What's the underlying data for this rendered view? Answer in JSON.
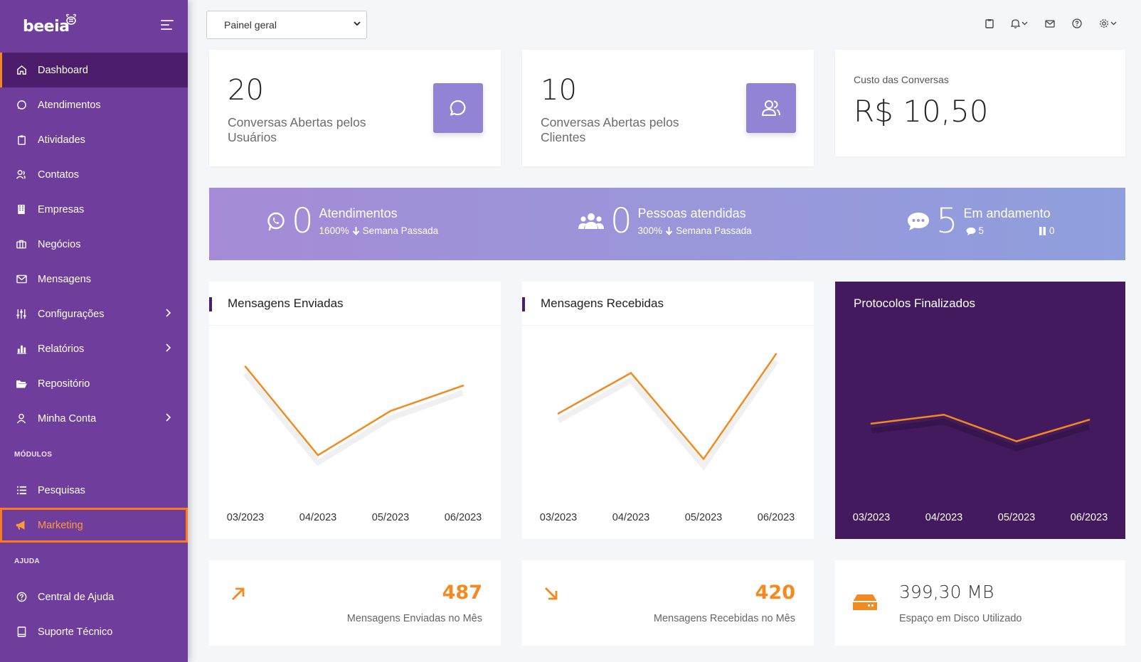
{
  "app": {
    "logo": "beeia"
  },
  "sidebar": {
    "items": [
      {
        "label": "Dashboard"
      },
      {
        "label": "Atendimentos"
      },
      {
        "label": "Atividades"
      },
      {
        "label": "Contatos"
      },
      {
        "label": "Empresas"
      },
      {
        "label": "Negócios"
      },
      {
        "label": "Mensagens"
      },
      {
        "label": "Configurações"
      },
      {
        "label": "Relatórios"
      },
      {
        "label": "Repositório"
      },
      {
        "label": "Minha Conta"
      }
    ],
    "section_modulos": "MÓDULOS",
    "modulos": [
      {
        "label": "Pesquisas"
      },
      {
        "label": "Marketing"
      }
    ],
    "section_ajuda": "AJUDA",
    "ajuda": [
      {
        "label": "Central de Ajuda"
      },
      {
        "label": "Suporte Técnico"
      }
    ]
  },
  "topbar": {
    "select_value": "Painel geral"
  },
  "cards": {
    "c1": {
      "value": "20",
      "label": "Conversas Abertas pelos Usuários"
    },
    "c2": {
      "value": "10",
      "label": "Conversas Abertas pelos Clientes"
    },
    "c3": {
      "title": "Custo das Conversas",
      "value": "R$ 10,50"
    }
  },
  "banner": {
    "s1": {
      "value": "0",
      "title": "Atendimentos",
      "pct": "1600%",
      "sub": "Semana Passada"
    },
    "s2": {
      "value": "0",
      "title": "Pessoas atendidas",
      "pct": "300%",
      "sub": "Semana Passada"
    },
    "s3": {
      "value": "5",
      "title": "Em andamento",
      "chat_count": "5",
      "pause_count": "0"
    }
  },
  "chart_data": [
    {
      "type": "line",
      "title": "Mensagens Enviadas",
      "categories": [
        "03/2023",
        "04/2023",
        "05/2023",
        "06/2023"
      ],
      "values": [
        8,
        1,
        4.5,
        6.5
      ]
    },
    {
      "type": "line",
      "title": "Mensagens Recebidas",
      "categories": [
        "03/2023",
        "04/2023",
        "05/2023",
        "06/2023"
      ],
      "values": [
        4.3,
        7.5,
        0.7,
        9
      ]
    },
    {
      "type": "line",
      "title": "Protocolos Finalizados",
      "categories": [
        "03/2023",
        "04/2023",
        "05/2023",
        "06/2023"
      ],
      "values": [
        3.5,
        4.2,
        2.1,
        3.8
      ]
    }
  ],
  "bottom": {
    "b1": {
      "value": "487",
      "label": "Mensagens Enviadas no Mês"
    },
    "b2": {
      "value": "420",
      "label": "Mensagens Recebidas no Mês"
    },
    "b3": {
      "value": "399,30 MB",
      "label": "Espaço em Disco Utilizado"
    }
  },
  "colors": {
    "sidebar": "#6f3d9c",
    "active": "#4b1d6b",
    "accent": "#f28a1f",
    "dark_card": "#431a5e"
  }
}
